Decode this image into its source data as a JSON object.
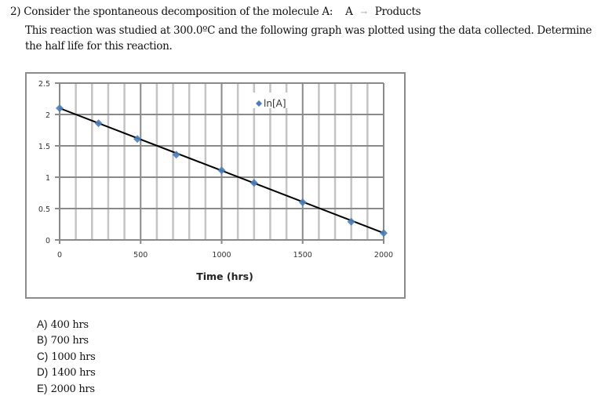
{
  "question": {
    "number": "2)",
    "line1": "Consider the spontaneous decomposition of the molecule A:",
    "reactant": "A",
    "arrow": "→",
    "product": "Products",
    "line2": "This reaction was studied at 300.0ºC and the following graph was plotted using the data collected.  Determine",
    "line3": "the half life for this reaction."
  },
  "chart_data": {
    "type": "scatter",
    "title": "",
    "xlabel": "Time (hrs)",
    "ylabel": "",
    "xlim": [
      0,
      2000
    ],
    "ylim": [
      0,
      2.5
    ],
    "x_ticks": [
      "0",
      "500",
      "1000",
      "1500",
      "2000"
    ],
    "y_ticks": [
      "0",
      "0.5",
      "1",
      "1.5",
      "2",
      "2.5"
    ],
    "grid": true,
    "legend_position": "top-center-right",
    "series": [
      {
        "name": "ln[A]",
        "marker": "diamond",
        "color": "#4a7ebb",
        "x": [
          0,
          240,
          480,
          720,
          1000,
          1200,
          1500,
          1800,
          2000
        ],
        "y": [
          2.1,
          1.86,
          1.61,
          1.36,
          1.11,
          0.91,
          0.6,
          0.29,
          0.11
        ]
      }
    ],
    "trendline": {
      "x": [
        0,
        2000
      ],
      "y": [
        2.1,
        0.11
      ],
      "color": "#000000"
    }
  },
  "legend": {
    "label": "ln[A]"
  },
  "axis": {
    "x_ticks": [
      "0",
      "500",
      "1000",
      "1500",
      "2000"
    ],
    "y_ticks": [
      "0",
      "0.5",
      "1",
      "1.5",
      "2",
      "2.5"
    ],
    "xlabel": "Time (hrs)"
  },
  "choices": [
    {
      "label": "A)",
      "text": "400 hrs"
    },
    {
      "label": "B)",
      "text": "700 hrs"
    },
    {
      "label": "C)",
      "text": "1000 hrs"
    },
    {
      "label": "D)",
      "text": "1400 hrs"
    },
    {
      "label": "E)",
      "text": "2000 hrs"
    }
  ]
}
